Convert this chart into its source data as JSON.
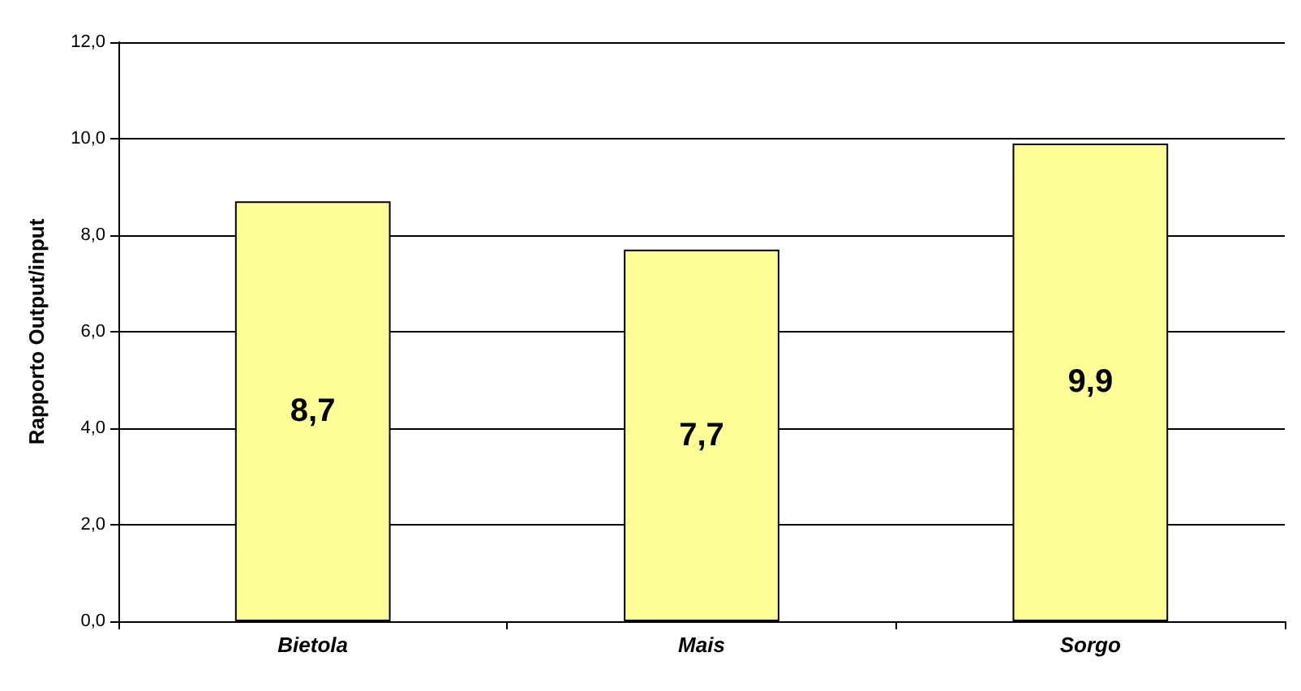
{
  "chart_data": {
    "type": "bar",
    "ylabel": "Rapporto Output/input",
    "categories": [
      "Bietola",
      "Mais",
      "Sorgo"
    ],
    "values": [
      8.7,
      7.7,
      9.9
    ],
    "value_labels": [
      "8,7",
      "7,7",
      "9,9"
    ],
    "color": "#ffff99",
    "ylim": [
      0,
      12
    ],
    "yticks": [
      {
        "value": 0,
        "label": "0,0"
      },
      {
        "value": 2,
        "label": "2,0"
      },
      {
        "value": 4,
        "label": "4,0"
      },
      {
        "value": 6,
        "label": "6,0"
      },
      {
        "value": 8,
        "label": "8,0"
      },
      {
        "value": 10,
        "label": "10,0"
      },
      {
        "value": 12,
        "label": "12,0"
      }
    ],
    "grid": "y"
  }
}
